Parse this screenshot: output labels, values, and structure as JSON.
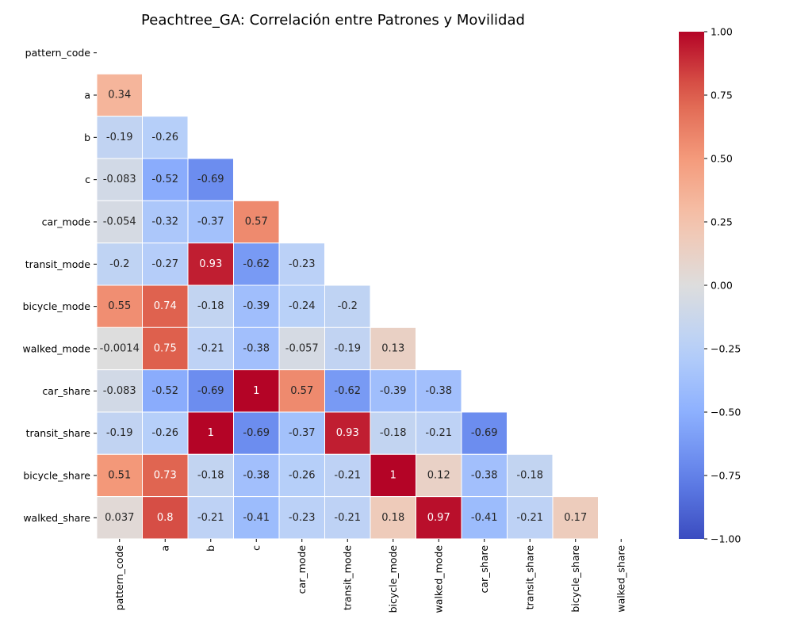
{
  "chart_data": {
    "type": "heatmap",
    "title": "Peachtree_GA: Correlación entre Patrones y Movilidad",
    "row_labels": [
      "pattern_code",
      "a",
      "b",
      "c",
      "car_mode",
      "transit_mode",
      "bicycle_mode",
      "walked_mode",
      "car_share",
      "transit_share",
      "bicycle_share",
      "walked_share"
    ],
    "col_labels": [
      "pattern_code",
      "a",
      "b",
      "c",
      "car_mode",
      "transit_mode",
      "bicycle_mode",
      "walked_mode",
      "car_share",
      "transit_share",
      "bicycle_share",
      "walked_share"
    ],
    "mask": "upper-triangle-including-diagonal",
    "cells": [
      {
        "row": 1,
        "col": 0,
        "value": 0.34,
        "label": "0.34"
      },
      {
        "row": 2,
        "col": 0,
        "value": -0.19,
        "label": "-0.19"
      },
      {
        "row": 2,
        "col": 1,
        "value": -0.26,
        "label": "-0.26"
      },
      {
        "row": 3,
        "col": 0,
        "value": -0.083,
        "label": "-0.083"
      },
      {
        "row": 3,
        "col": 1,
        "value": -0.52,
        "label": "-0.52"
      },
      {
        "row": 3,
        "col": 2,
        "value": -0.69,
        "label": "-0.69"
      },
      {
        "row": 4,
        "col": 0,
        "value": -0.054,
        "label": "-0.054"
      },
      {
        "row": 4,
        "col": 1,
        "value": -0.32,
        "label": "-0.32"
      },
      {
        "row": 4,
        "col": 2,
        "value": -0.37,
        "label": "-0.37"
      },
      {
        "row": 4,
        "col": 3,
        "value": 0.57,
        "label": "0.57"
      },
      {
        "row": 5,
        "col": 0,
        "value": -0.2,
        "label": "-0.2"
      },
      {
        "row": 5,
        "col": 1,
        "value": -0.27,
        "label": "-0.27"
      },
      {
        "row": 5,
        "col": 2,
        "value": 0.93,
        "label": "0.93"
      },
      {
        "row": 5,
        "col": 3,
        "value": -0.62,
        "label": "-0.62"
      },
      {
        "row": 5,
        "col": 4,
        "value": -0.23,
        "label": "-0.23"
      },
      {
        "row": 6,
        "col": 0,
        "value": 0.55,
        "label": "0.55"
      },
      {
        "row": 6,
        "col": 1,
        "value": 0.74,
        "label": "0.74"
      },
      {
        "row": 6,
        "col": 2,
        "value": -0.18,
        "label": "-0.18"
      },
      {
        "row": 6,
        "col": 3,
        "value": -0.39,
        "label": "-0.39"
      },
      {
        "row": 6,
        "col": 4,
        "value": -0.24,
        "label": "-0.24"
      },
      {
        "row": 6,
        "col": 5,
        "value": -0.2,
        "label": "-0.2"
      },
      {
        "row": 7,
        "col": 0,
        "value": -0.0014,
        "label": "-0.0014"
      },
      {
        "row": 7,
        "col": 1,
        "value": 0.75,
        "label": "0.75"
      },
      {
        "row": 7,
        "col": 2,
        "value": -0.21,
        "label": "-0.21"
      },
      {
        "row": 7,
        "col": 3,
        "value": -0.38,
        "label": "-0.38"
      },
      {
        "row": 7,
        "col": 4,
        "value": -0.057,
        "label": "-0.057"
      },
      {
        "row": 7,
        "col": 5,
        "value": -0.19,
        "label": "-0.19"
      },
      {
        "row": 7,
        "col": 6,
        "value": 0.13,
        "label": "0.13"
      },
      {
        "row": 8,
        "col": 0,
        "value": -0.083,
        "label": "-0.083"
      },
      {
        "row": 8,
        "col": 1,
        "value": -0.52,
        "label": "-0.52"
      },
      {
        "row": 8,
        "col": 2,
        "value": -0.69,
        "label": "-0.69"
      },
      {
        "row": 8,
        "col": 3,
        "value": 1,
        "label": "1"
      },
      {
        "row": 8,
        "col": 4,
        "value": 0.57,
        "label": "0.57"
      },
      {
        "row": 8,
        "col": 5,
        "value": -0.62,
        "label": "-0.62"
      },
      {
        "row": 8,
        "col": 6,
        "value": -0.39,
        "label": "-0.39"
      },
      {
        "row": 8,
        "col": 7,
        "value": -0.38,
        "label": "-0.38"
      },
      {
        "row": 9,
        "col": 0,
        "value": -0.19,
        "label": "-0.19"
      },
      {
        "row": 9,
        "col": 1,
        "value": -0.26,
        "label": "-0.26"
      },
      {
        "row": 9,
        "col": 2,
        "value": 1,
        "label": "1"
      },
      {
        "row": 9,
        "col": 3,
        "value": -0.69,
        "label": "-0.69"
      },
      {
        "row": 9,
        "col": 4,
        "value": -0.37,
        "label": "-0.37"
      },
      {
        "row": 9,
        "col": 5,
        "value": 0.93,
        "label": "0.93"
      },
      {
        "row": 9,
        "col": 6,
        "value": -0.18,
        "label": "-0.18"
      },
      {
        "row": 9,
        "col": 7,
        "value": -0.21,
        "label": "-0.21"
      },
      {
        "row": 9,
        "col": 8,
        "value": -0.69,
        "label": "-0.69"
      },
      {
        "row": 10,
        "col": 0,
        "value": 0.51,
        "label": "0.51"
      },
      {
        "row": 10,
        "col": 1,
        "value": 0.73,
        "label": "0.73"
      },
      {
        "row": 10,
        "col": 2,
        "value": -0.18,
        "label": "-0.18"
      },
      {
        "row": 10,
        "col": 3,
        "value": -0.38,
        "label": "-0.38"
      },
      {
        "row": 10,
        "col": 4,
        "value": -0.26,
        "label": "-0.26"
      },
      {
        "row": 10,
        "col": 5,
        "value": -0.21,
        "label": "-0.21"
      },
      {
        "row": 10,
        "col": 6,
        "value": 1,
        "label": "1"
      },
      {
        "row": 10,
        "col": 7,
        "value": 0.12,
        "label": "0.12"
      },
      {
        "row": 10,
        "col": 8,
        "value": -0.38,
        "label": "-0.38"
      },
      {
        "row": 10,
        "col": 9,
        "value": -0.18,
        "label": "-0.18"
      },
      {
        "row": 11,
        "col": 0,
        "value": 0.037,
        "label": "0.037"
      },
      {
        "row": 11,
        "col": 1,
        "value": 0.8,
        "label": "0.8"
      },
      {
        "row": 11,
        "col": 2,
        "value": -0.21,
        "label": "-0.21"
      },
      {
        "row": 11,
        "col": 3,
        "value": -0.41,
        "label": "-0.41"
      },
      {
        "row": 11,
        "col": 4,
        "value": -0.23,
        "label": "-0.23"
      },
      {
        "row": 11,
        "col": 5,
        "value": -0.21,
        "label": "-0.21"
      },
      {
        "row": 11,
        "col": 6,
        "value": 0.18,
        "label": "0.18"
      },
      {
        "row": 11,
        "col": 7,
        "value": 0.97,
        "label": "0.97"
      },
      {
        "row": 11,
        "col": 8,
        "value": -0.41,
        "label": "-0.41"
      },
      {
        "row": 11,
        "col": 9,
        "value": -0.21,
        "label": "-0.21"
      },
      {
        "row": 11,
        "col": 10,
        "value": 0.17,
        "label": "0.17"
      }
    ],
    "colorbar": {
      "colormap": "coolwarm",
      "range": [
        -1,
        1
      ],
      "ticks": [
        {
          "value": 1,
          "label": "1.00"
        },
        {
          "value": 0.75,
          "label": "0.75"
        },
        {
          "value": 0.5,
          "label": "0.50"
        },
        {
          "value": 0.25,
          "label": "0.25"
        },
        {
          "value": 0,
          "label": "0.00"
        },
        {
          "value": -0.25,
          "label": "−0.25"
        },
        {
          "value": -0.5,
          "label": "−0.50"
        },
        {
          "value": -0.75,
          "label": "−0.75"
        },
        {
          "value": -1,
          "label": "−1.00"
        }
      ]
    },
    "grid": false,
    "legend": "colorbar-right"
  }
}
